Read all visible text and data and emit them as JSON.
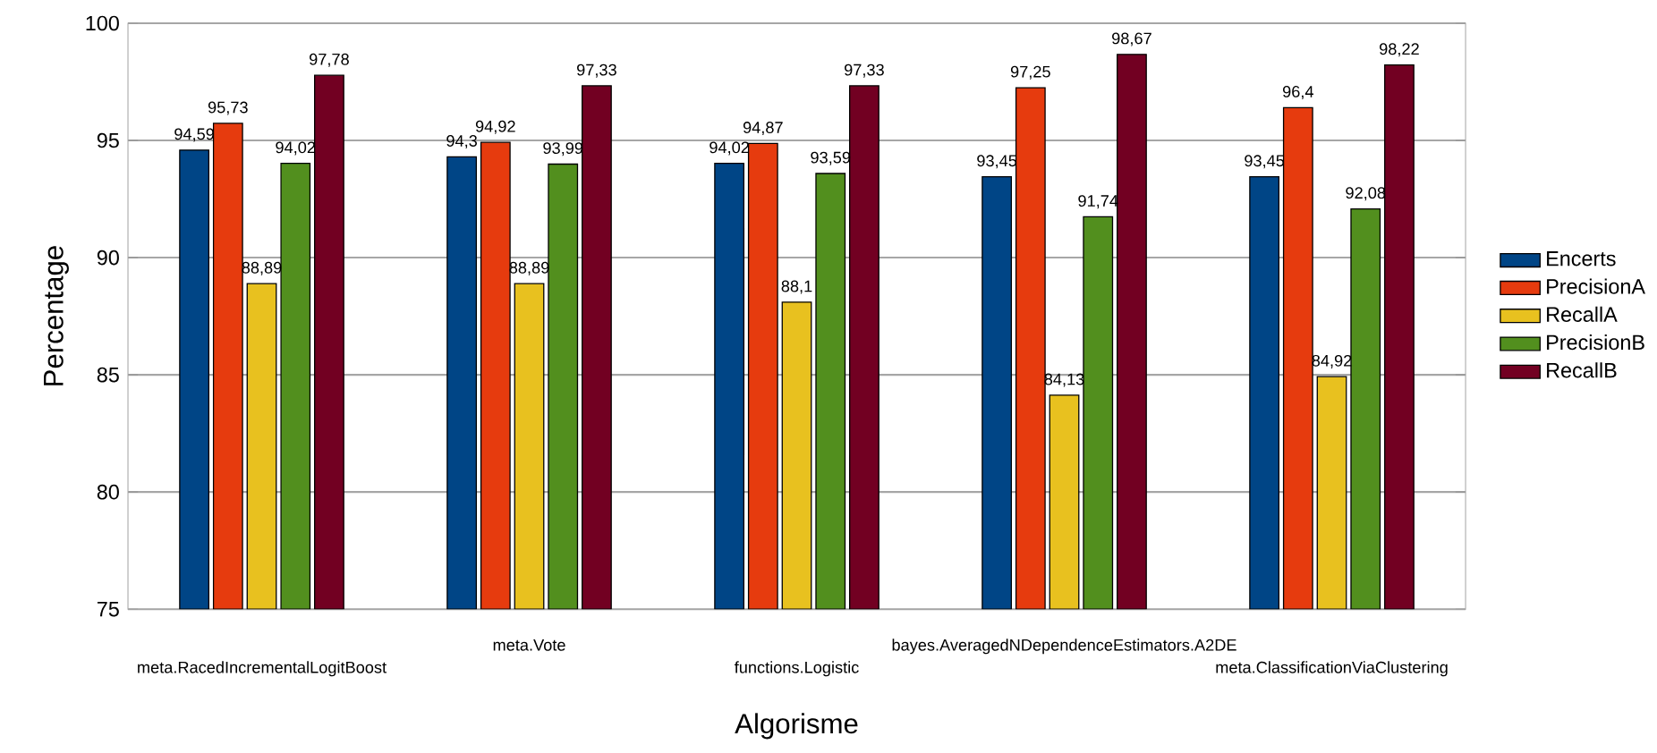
{
  "chart_data": {
    "type": "bar",
    "xlabel": "Algorisme",
    "ylabel": "Percentage",
    "categories": [
      "meta.RacedIncrementalLogitBoost",
      "meta.Vote",
      "functions.Logistic",
      "bayes.AveragedNDependenceEstimators.A2DE",
      "meta.ClassificationViaClustering"
    ],
    "series": [
      {
        "name": "Encerts",
        "color": "#004586",
        "values": [
          94.59,
          94.3,
          94.02,
          93.45,
          93.45
        ],
        "value_labels": [
          "94,59",
          "94,3",
          "94,02",
          "93,45",
          "93,45"
        ]
      },
      {
        "name": "PrecisionA",
        "color": "#e63b0e",
        "values": [
          95.73,
          94.92,
          94.87,
          97.25,
          96.4
        ],
        "value_labels": [
          "95,73",
          "94,92",
          "94,87",
          "97,25",
          "96,4"
        ]
      },
      {
        "name": "RecallA",
        "color": "#e8c11f",
        "values": [
          88.89,
          88.89,
          88.1,
          84.13,
          84.92
        ],
        "value_labels": [
          "88,89",
          "88,89",
          "88,1",
          "84,13",
          "84,92"
        ]
      },
      {
        "name": "PrecisionB",
        "color": "#528f1e",
        "values": [
          94.02,
          93.99,
          93.59,
          91.74,
          92.08
        ],
        "value_labels": [
          "94,02",
          "93,99",
          "93,59",
          "91,74",
          "92,08"
        ]
      },
      {
        "name": "RecallB",
        "color": "#720022",
        "values": [
          97.78,
          97.33,
          97.33,
          98.67,
          98.22
        ],
        "value_labels": [
          "97,78",
          "97,33",
          "97,33",
          "98,67",
          "98,22"
        ]
      }
    ],
    "ylim": [
      75,
      100
    ],
    "yticks": [
      75,
      80,
      85,
      90,
      95,
      100
    ],
    "grid": "y",
    "legend": "right"
  }
}
